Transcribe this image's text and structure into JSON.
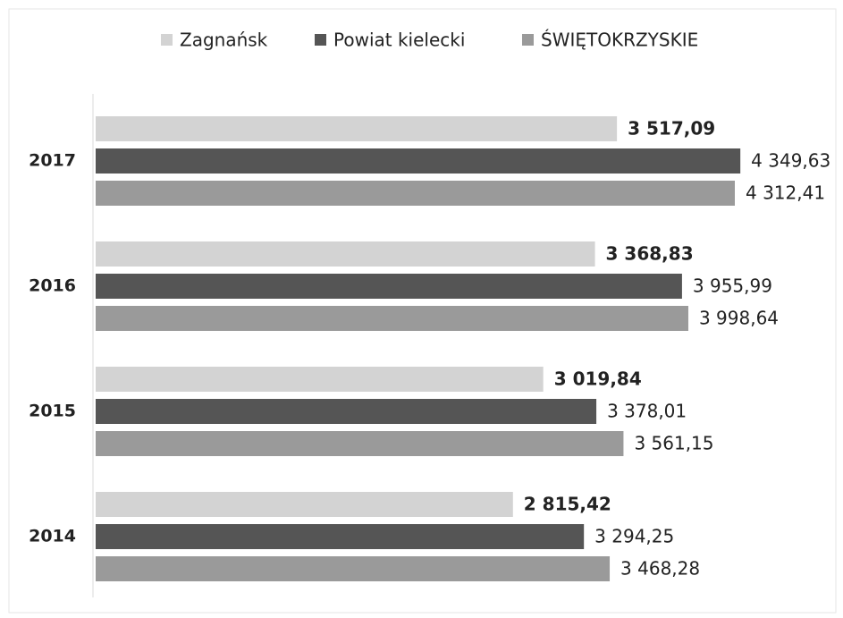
{
  "chart_data": {
    "type": "barh",
    "categories": [
      "2017",
      "2016",
      "2015",
      "2014"
    ],
    "xlim": [
      0,
      5000
    ],
    "legend": "top",
    "series": [
      {
        "name": "Zagnańsk",
        "color": "#d3d3d3",
        "values": [
          3517.09,
          3368.83,
          3019.84,
          2815.42
        ],
        "value_labels": [
          "3 517,09",
          "3 368,83",
          "3 019,84",
          "2 815,42"
        ]
      },
      {
        "name": "Powiat kielecki",
        "color": "#555555",
        "values": [
          4349.63,
          3955.99,
          3378.01,
          3294.25
        ],
        "value_labels": [
          "4 349,63",
          "3 955,99",
          "3 378,01",
          "3 294,25"
        ]
      },
      {
        "name": "ŚWIĘTOKRZYSKIE",
        "color": "#9a9a9a",
        "values": [
          4312.41,
          3998.64,
          3561.15,
          3468.28
        ],
        "value_labels": [
          "4 312,41",
          "3 998,64",
          "3 561,15",
          "3 468,28"
        ]
      }
    ]
  }
}
